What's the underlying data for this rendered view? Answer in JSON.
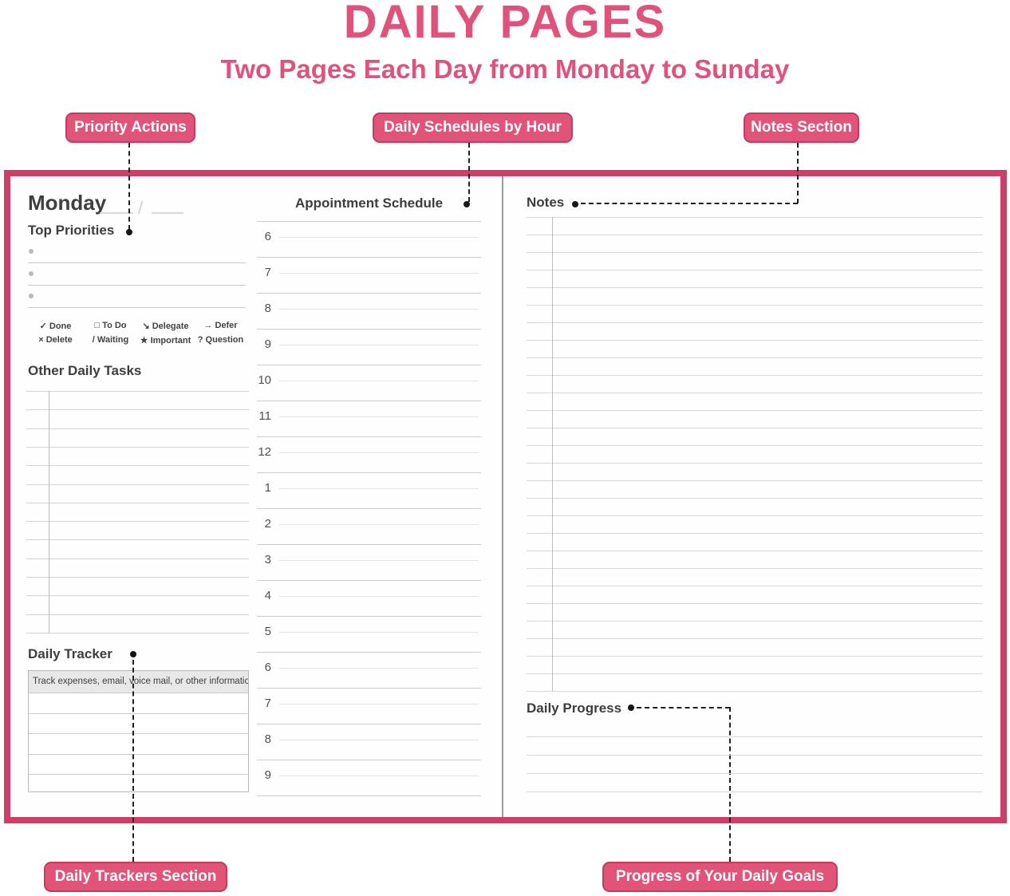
{
  "header": {
    "title": "DAILY PAGES",
    "subtitle": "Two Pages Each Day from Monday to Sunday"
  },
  "callouts": {
    "priority": "Priority Actions",
    "schedule": "Daily Schedules by Hour",
    "notes": "Notes Section",
    "trackers": "Daily Trackers Section",
    "progress": "Progress of Your Daily Goals"
  },
  "left_page": {
    "day": "Monday",
    "date_separator": "/",
    "top_priorities_title": "Top Priorities",
    "legend": {
      "row1": [
        {
          "symbol": "✓",
          "label": "Done"
        },
        {
          "symbol": "□",
          "label": "To Do"
        },
        {
          "symbol": "↘",
          "label": "Delegate"
        },
        {
          "symbol": "→",
          "label": "Defer"
        }
      ],
      "row2": [
        {
          "symbol": "×",
          "label": "Delete"
        },
        {
          "symbol": "/",
          "label": "Waiting"
        },
        {
          "symbol": "★",
          "label": "Important"
        },
        {
          "symbol": "?",
          "label": "Question"
        }
      ]
    },
    "other_tasks_title": "Other Daily Tasks",
    "tracker_title": "Daily Tracker",
    "tracker_hint": "Track expenses, email, voice mail, or other information."
  },
  "schedule": {
    "title": "Appointment Schedule",
    "hours": [
      "6",
      "7",
      "8",
      "9",
      "10",
      "11",
      "12",
      "1",
      "2",
      "3",
      "4",
      "5",
      "6",
      "7",
      "8",
      "9"
    ]
  },
  "right_page": {
    "notes_title": "Notes",
    "progress_title": "Daily Progress"
  },
  "colors": {
    "accent_pink": "#e0527b",
    "badge_fill": "#e25378",
    "badge_border": "#c23b60",
    "spread_border": "#cf3d68",
    "line_gray": "#d2d2d2",
    "tracker_header_bg": "#e8e8e8"
  }
}
